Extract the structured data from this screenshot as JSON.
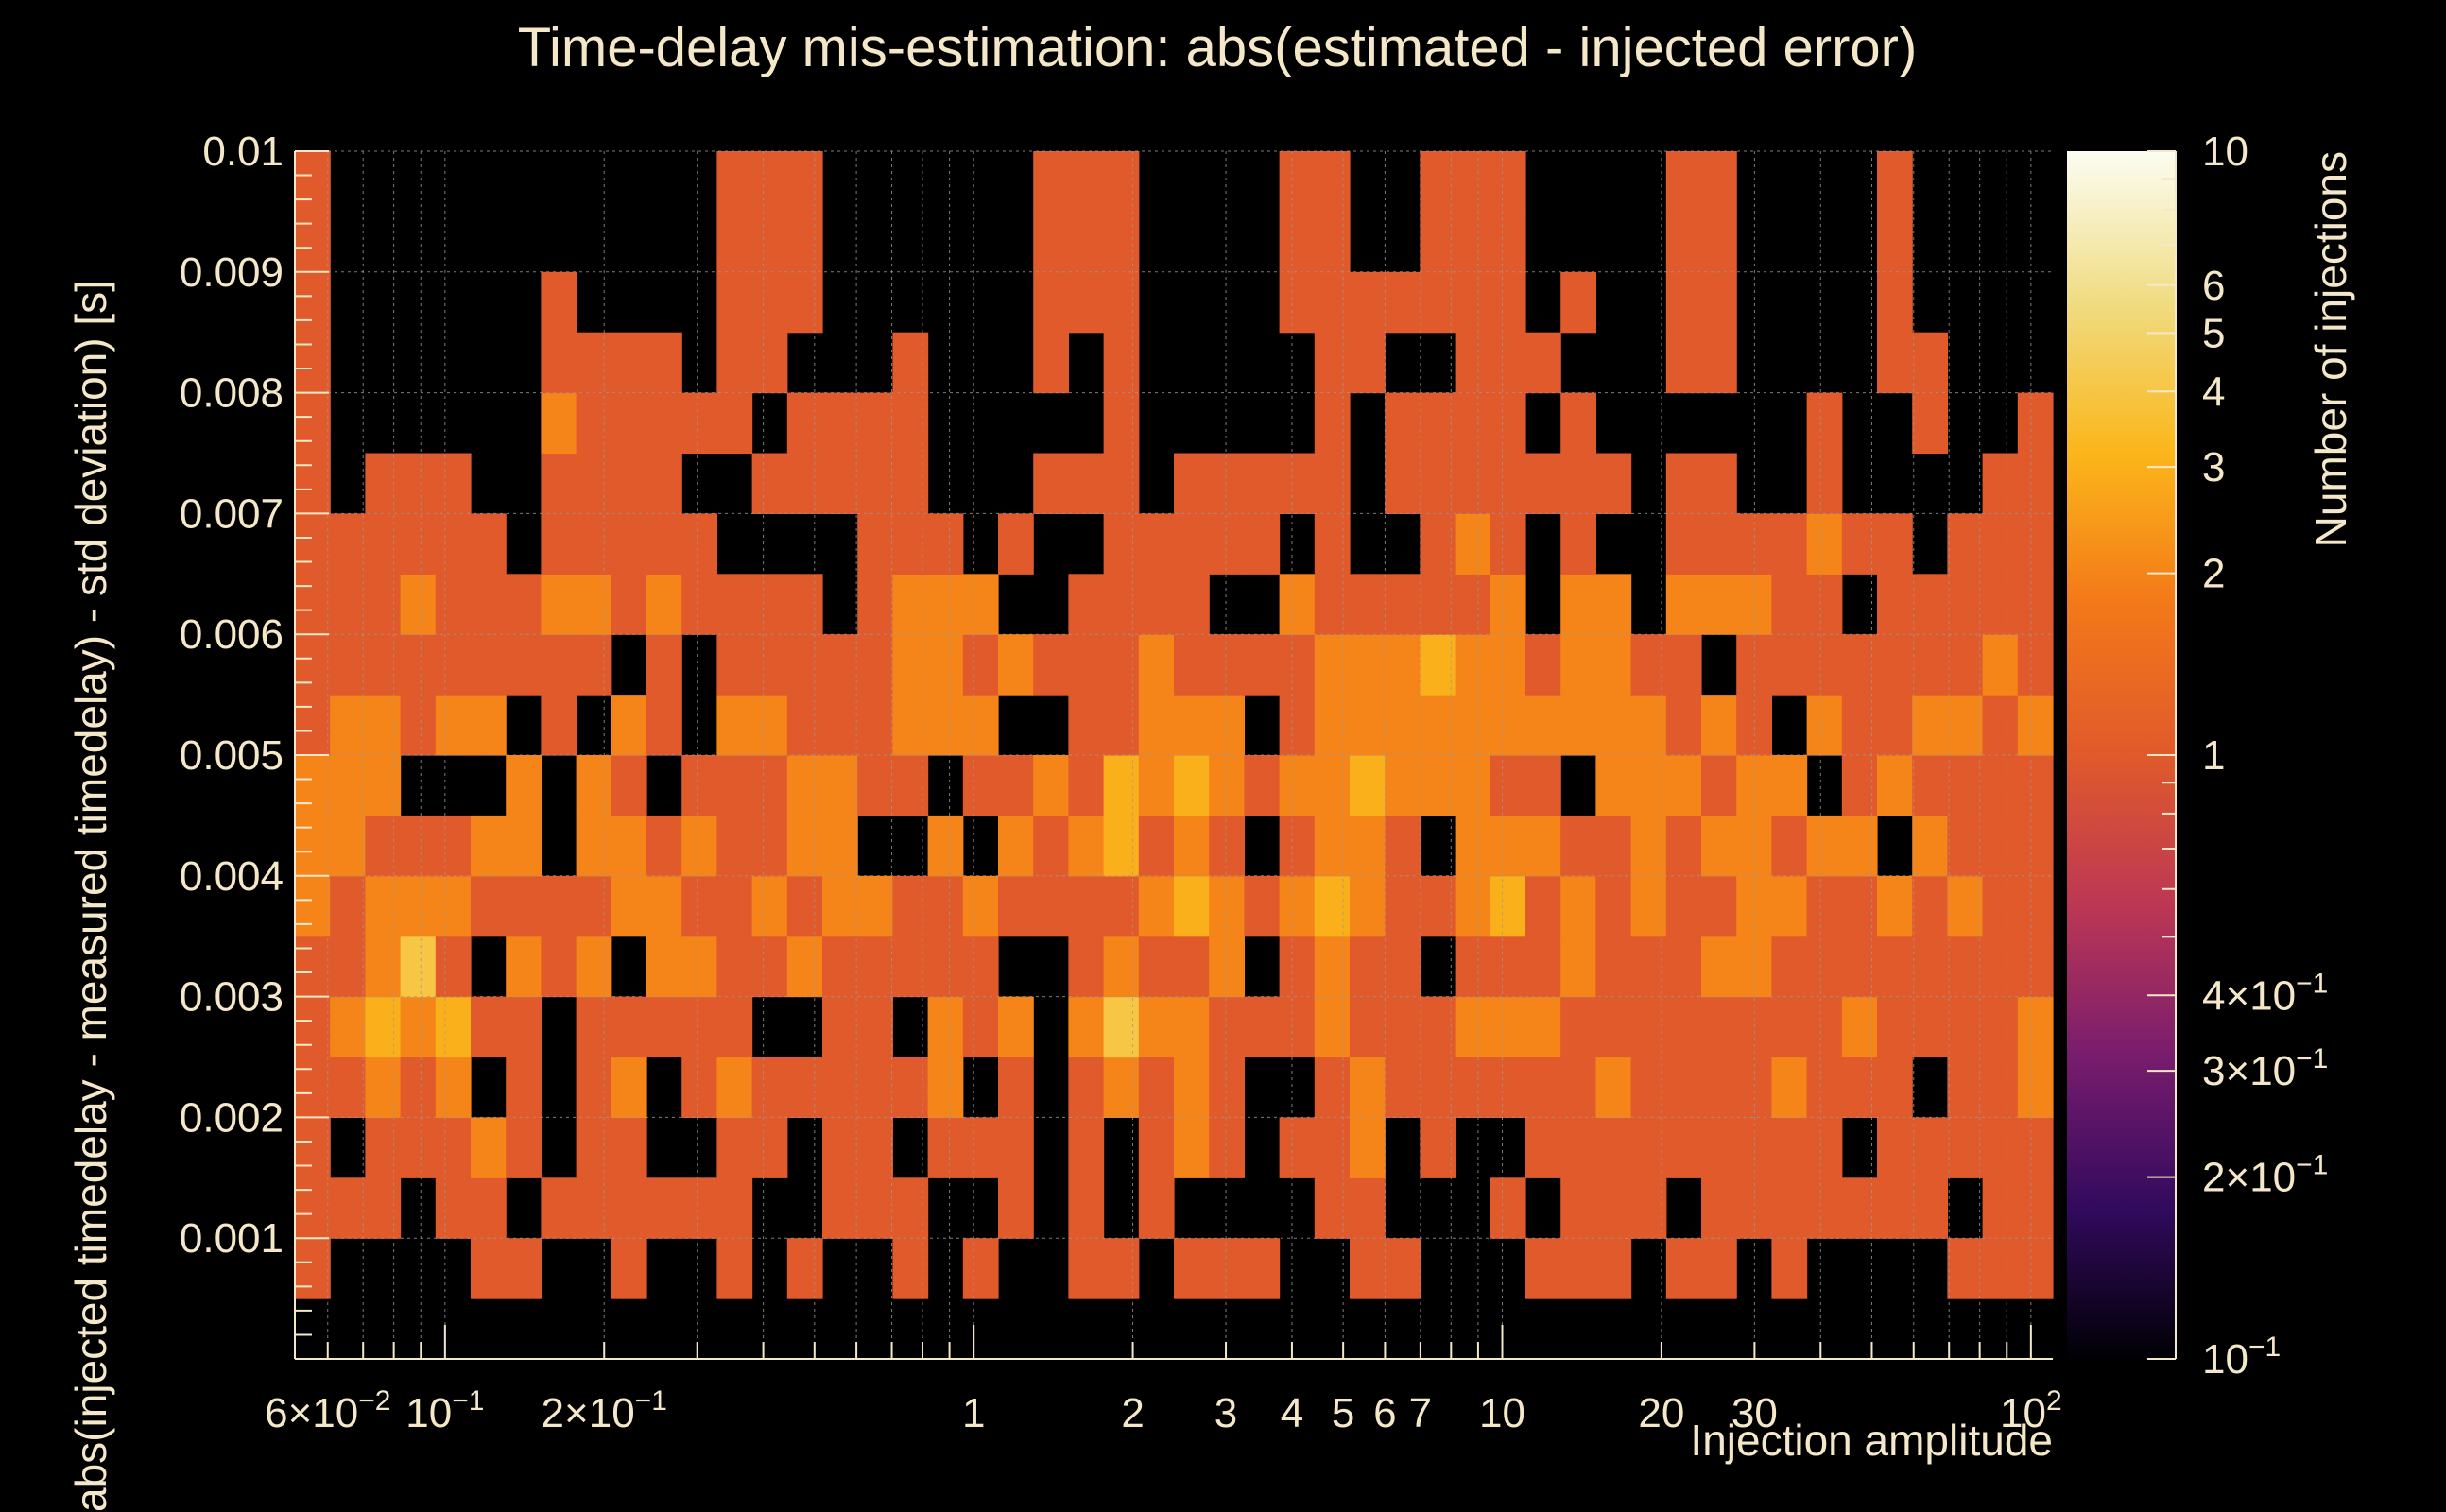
{
  "chart_data": {
    "type": "heatmap",
    "title": "Time-delay mis-estimation: abs(estimated - injected error)",
    "xlabel": "Injection amplitude",
    "ylabel": "abs(injected timedelay - measured timedelay) - std deviation) [s]",
    "zlabel": "Number of injections",
    "x_scale": "log",
    "x_range": [
      0.052,
      110
    ],
    "y_range": [
      0,
      0.01
    ],
    "z_scale": "log",
    "z_range": [
      0.1,
      10
    ],
    "grid": true,
    "x_tick_labels": [
      {
        "value": 0.06,
        "mant": "6",
        "exp": "−2"
      },
      {
        "value": 0.1,
        "mant": "10",
        "exp": "−1"
      },
      {
        "value": 0.2,
        "mant": "2",
        "exp": "−1"
      },
      {
        "value": 1,
        "text": "1"
      },
      {
        "value": 2,
        "text": "2"
      },
      {
        "value": 3,
        "text": "3"
      },
      {
        "value": 4,
        "text": "4"
      },
      {
        "value": 5,
        "text": "5"
      },
      {
        "value": 6,
        "text": "6"
      },
      {
        "value": 7,
        "text": "7"
      },
      {
        "value": 10,
        "text": "10"
      },
      {
        "value": 20,
        "text": "20"
      },
      {
        "value": 30,
        "text": "30"
      },
      {
        "value": 100,
        "mant": "10",
        "exp": "2"
      }
    ],
    "y_tick_labels": [
      "0.001",
      "0.002",
      "0.003",
      "0.004",
      "0.005",
      "0.006",
      "0.007",
      "0.008",
      "0.009",
      "0.01"
    ],
    "z_tick_labels": [
      {
        "value": 10,
        "text": "10"
      },
      {
        "value": 6,
        "text": "6"
      },
      {
        "value": 5,
        "text": "5"
      },
      {
        "value": 4,
        "text": "4"
      },
      {
        "value": 3,
        "text": "3"
      },
      {
        "value": 2,
        "text": "2"
      },
      {
        "value": 1,
        "text": "1"
      },
      {
        "value": 0.4,
        "mant": "4",
        "exp": "−1"
      },
      {
        "value": 0.3,
        "mant": "3",
        "exp": "−1"
      },
      {
        "value": 0.2,
        "mant": "2",
        "exp": "−1"
      },
      {
        "value": 0.1,
        "mant": "10",
        "exp": "−1"
      }
    ],
    "x_bins": 50,
    "y_bins": 20,
    "grid_counts_columns_bottom_to_top": [
      [
        0,
        1,
        1,
        1,
        1,
        1,
        1,
        2,
        2,
        2,
        1,
        1,
        1,
        1,
        1,
        1,
        1,
        1,
        1,
        1
      ],
      [
        0,
        0,
        1,
        0,
        1,
        2,
        1,
        1,
        2,
        2,
        2,
        1,
        1,
        1,
        0,
        0,
        0,
        0,
        0,
        0
      ],
      [
        0,
        0,
        1,
        1,
        2,
        3,
        2,
        2,
        1,
        2,
        2,
        1,
        1,
        1,
        1,
        0,
        0,
        0,
        0,
        0
      ],
      [
        0,
        0,
        0,
        1,
        1,
        2,
        4,
        2,
        1,
        0,
        1,
        1,
        2,
        1,
        1,
        0,
        0,
        0,
        0,
        0
      ],
      [
        0,
        0,
        1,
        1,
        2,
        3,
        1,
        2,
        1,
        0,
        2,
        1,
        1,
        1,
        1,
        0,
        0,
        0,
        0,
        0
      ],
      [
        0,
        1,
        1,
        2,
        0,
        1,
        0,
        1,
        2,
        0,
        2,
        1,
        1,
        1,
        0,
        0,
        0,
        0,
        0,
        0
      ],
      [
        0,
        1,
        0,
        1,
        1,
        1,
        2,
        1,
        2,
        2,
        0,
        1,
        1,
        0,
        0,
        0,
        0,
        0,
        0,
        0
      ],
      [
        0,
        0,
        1,
        0,
        0,
        0,
        1,
        1,
        0,
        0,
        1,
        1,
        2,
        1,
        1,
        2,
        1,
        1,
        0,
        0
      ],
      [
        0,
        0,
        1,
        1,
        1,
        1,
        2,
        1,
        2,
        2,
        0,
        1,
        2,
        1,
        1,
        1,
        1,
        0,
        0,
        0
      ],
      [
        0,
        1,
        1,
        1,
        2,
        1,
        0,
        2,
        2,
        1,
        2,
        0,
        1,
        1,
        1,
        1,
        1,
        0,
        0,
        0
      ],
      [
        0,
        0,
        1,
        0,
        0,
        1,
        2,
        2,
        1,
        0,
        1,
        1,
        2,
        1,
        1,
        1,
        1,
        0,
        0,
        0
      ],
      [
        0,
        0,
        1,
        0,
        1,
        1,
        2,
        1,
        2,
        1,
        0,
        0,
        1,
        1,
        0,
        1,
        0,
        0,
        0,
        0
      ],
      [
        0,
        1,
        1,
        1,
        2,
        1,
        1,
        1,
        1,
        1,
        2,
        1,
        1,
        0,
        0,
        1,
        1,
        1,
        1,
        1
      ],
      [
        0,
        0,
        0,
        1,
        1,
        0,
        1,
        2,
        1,
        1,
        2,
        1,
        1,
        0,
        1,
        0,
        1,
        1,
        1,
        1
      ],
      [
        0,
        1,
        0,
        0,
        1,
        0,
        2,
        1,
        2,
        2,
        1,
        1,
        1,
        0,
        1,
        1,
        0,
        1,
        1,
        1
      ],
      [
        0,
        0,
        1,
        1,
        1,
        1,
        1,
        2,
        2,
        2,
        1,
        1,
        0,
        0,
        1,
        1,
        0,
        0,
        0,
        0
      ],
      [
        0,
        0,
        1,
        1,
        1,
        1,
        1,
        2,
        0,
        1,
        1,
        1,
        1,
        1,
        1,
        1,
        0,
        0,
        0,
        0
      ],
      [
        0,
        1,
        1,
        0,
        1,
        0,
        1,
        1,
        0,
        1,
        2,
        2,
        2,
        1,
        1,
        1,
        1,
        0,
        0,
        0
      ],
      [
        0,
        0,
        0,
        1,
        2,
        2,
        1,
        1,
        2,
        0,
        2,
        2,
        2,
        1,
        0,
        0,
        0,
        0,
        0,
        0
      ],
      [
        0,
        1,
        0,
        1,
        0,
        1,
        1,
        2,
        0,
        1,
        2,
        1,
        2,
        0,
        0,
        0,
        0,
        0,
        0,
        0
      ],
      [
        0,
        0,
        1,
        1,
        1,
        2,
        0,
        1,
        2,
        1,
        0,
        2,
        0,
        1,
        0,
        0,
        0,
        0,
        0,
        0
      ],
      [
        0,
        0,
        0,
        0,
        0,
        0,
        0,
        1,
        1,
        2,
        0,
        1,
        0,
        0,
        1,
        0,
        1,
        1,
        1,
        1
      ],
      [
        0,
        1,
        1,
        1,
        1,
        2,
        1,
        1,
        2,
        1,
        1,
        1,
        1,
        0,
        1,
        0,
        0,
        1,
        1,
        1
      ],
      [
        0,
        1,
        0,
        0,
        2,
        4,
        2,
        1,
        3,
        3,
        1,
        1,
        1,
        1,
        1,
        1,
        1,
        1,
        1,
        1
      ],
      [
        0,
        0,
        1,
        1,
        1,
        2,
        1,
        2,
        1,
        2,
        2,
        2,
        1,
        1,
        0,
        0,
        0,
        0,
        0,
        0
      ],
      [
        0,
        1,
        0,
        2,
        2,
        2,
        1,
        3,
        2,
        3,
        2,
        1,
        1,
        1,
        1,
        0,
        0,
        0,
        0,
        0
      ],
      [
        0,
        1,
        0,
        1,
        1,
        1,
        2,
        2,
        1,
        2,
        2,
        1,
        0,
        1,
        1,
        0,
        0,
        0,
        0,
        0
      ],
      [
        0,
        1,
        0,
        0,
        0,
        1,
        0,
        1,
        0,
        1,
        0,
        1,
        0,
        1,
        1,
        0,
        0,
        0,
        0,
        0
      ],
      [
        0,
        0,
        0,
        1,
        0,
        1,
        1,
        2,
        1,
        2,
        1,
        1,
        2,
        0,
        1,
        0,
        0,
        1,
        1,
        1
      ],
      [
        0,
        0,
        1,
        1,
        1,
        2,
        2,
        3,
        2,
        2,
        2,
        2,
        1,
        1,
        1,
        1,
        1,
        1,
        1,
        1
      ],
      [
        0,
        1,
        1,
        2,
        2,
        1,
        1,
        2,
        2,
        3,
        2,
        2,
        1,
        0,
        0,
        0,
        1,
        1,
        0,
        0
      ],
      [
        0,
        1,
        0,
        0,
        1,
        1,
        1,
        1,
        1,
        2,
        2,
        2,
        1,
        0,
        1,
        1,
        0,
        1,
        0,
        0
      ],
      [
        0,
        0,
        0,
        1,
        1,
        1,
        0,
        1,
        0,
        2,
        2,
        3,
        1,
        1,
        1,
        1,
        0,
        1,
        1,
        1
      ],
      [
        0,
        0,
        0,
        0,
        1,
        2,
        1,
        2,
        2,
        2,
        2,
        2,
        1,
        2,
        1,
        1,
        1,
        1,
        1,
        1
      ],
      [
        0,
        0,
        1,
        0,
        1,
        2,
        1,
        3,
        2,
        1,
        2,
        2,
        2,
        1,
        1,
        1,
        1,
        1,
        1,
        1
      ],
      [
        0,
        1,
        0,
        1,
        1,
        2,
        1,
        1,
        2,
        1,
        2,
        1,
        0,
        0,
        1,
        0,
        1,
        0,
        0,
        0
      ],
      [
        0,
        1,
        1,
        1,
        1,
        1,
        2,
        2,
        1,
        0,
        2,
        2,
        2,
        1,
        1,
        1,
        0,
        1,
        0,
        0
      ],
      [
        0,
        1,
        1,
        1,
        2,
        1,
        1,
        1,
        1,
        2,
        2,
        2,
        2,
        0,
        1,
        0,
        0,
        0,
        0,
        0
      ],
      [
        0,
        0,
        1,
        1,
        1,
        1,
        1,
        2,
        2,
        2,
        2,
        1,
        0,
        0,
        0,
        0,
        0,
        0,
        0,
        0
      ],
      [
        0,
        1,
        0,
        1,
        1,
        1,
        1,
        1,
        1,
        2,
        1,
        1,
        2,
        1,
        1,
        0,
        1,
        1,
        1,
        1
      ],
      [
        0,
        1,
        1,
        1,
        1,
        1,
        2,
        1,
        2,
        1,
        2,
        0,
        2,
        1,
        1,
        0,
        1,
        1,
        1,
        1
      ],
      [
        0,
        0,
        1,
        1,
        1,
        1,
        2,
        2,
        2,
        2,
        1,
        1,
        2,
        1,
        0,
        0,
        0,
        0,
        0,
        0
      ],
      [
        0,
        1,
        1,
        1,
        2,
        1,
        1,
        2,
        1,
        2,
        0,
        1,
        1,
        1,
        0,
        0,
        0,
        0,
        0,
        0
      ],
      [
        0,
        0,
        1,
        1,
        1,
        1,
        1,
        1,
        2,
        0,
        2,
        1,
        1,
        2,
        1,
        1,
        0,
        0,
        0,
        0
      ],
      [
        0,
        0,
        1,
        0,
        1,
        2,
        1,
        1,
        2,
        1,
        1,
        1,
        0,
        1,
        0,
        0,
        0,
        0,
        0,
        0
      ],
      [
        0,
        0,
        1,
        1,
        1,
        1,
        1,
        2,
        0,
        2,
        1,
        1,
        1,
        1,
        0,
        0,
        1,
        1,
        1,
        1
      ],
      [
        0,
        0,
        1,
        1,
        0,
        1,
        1,
        1,
        2,
        1,
        2,
        1,
        1,
        0,
        0,
        1,
        1,
        0,
        0,
        0
      ],
      [
        0,
        1,
        0,
        1,
        1,
        1,
        1,
        2,
        1,
        1,
        2,
        1,
        1,
        1,
        0,
        0,
        0,
        0,
        0,
        0
      ],
      [
        0,
        1,
        1,
        1,
        1,
        1,
        1,
        1,
        1,
        1,
        1,
        2,
        1,
        1,
        1,
        0,
        0,
        0,
        0,
        0
      ],
      [
        0,
        1,
        1,
        1,
        2,
        2,
        1,
        1,
        1,
        1,
        2,
        1,
        1,
        1,
        1,
        1,
        0,
        0,
        0,
        0
      ]
    ]
  },
  "colors": {
    "background": "#000000",
    "text": "#f5e8c8",
    "colormap": [
      "#000004",
      "#320a5e",
      "#781c6d",
      "#bc3754",
      "#e05a2b",
      "#f37819",
      "#fbb61a",
      "#f0dc82",
      "#fcfdf2"
    ]
  }
}
